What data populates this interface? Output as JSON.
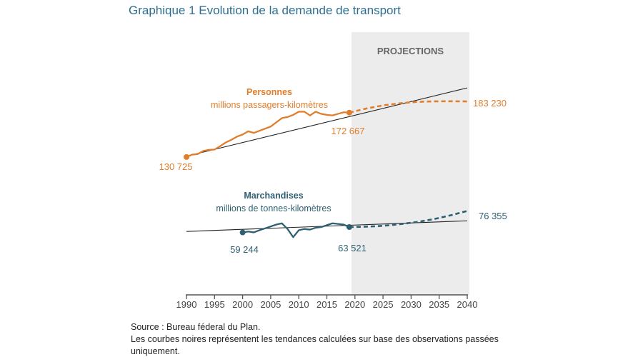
{
  "chart_data": {
    "type": "line",
    "title": "Graphique 1 Evolution de la demande de transport",
    "projections_label": "PROJECTIONS",
    "projection_start_year": 2019,
    "xlim": [
      1990,
      2040
    ],
    "xticks": [
      1990,
      1995,
      2000,
      2005,
      2010,
      2015,
      2020,
      2025,
      2030,
      2035,
      2040
    ],
    "colors": {
      "personnes": "#e07e2c",
      "marchandises": "#2f5f72",
      "trend": "#222222",
      "projection_band": "#ececec",
      "title": "#2e6e8e"
    },
    "series": [
      {
        "name": "Personnes",
        "unit": "millions passagers-kilomètres",
        "color": "#e07e2c",
        "observed": {
          "x": [
            1990,
            1991,
            1992,
            1993,
            1994,
            1995,
            1996,
            1997,
            1998,
            1999,
            2000,
            2001,
            2002,
            2003,
            2004,
            2005,
            2006,
            2007,
            2008,
            2009,
            2010,
            2011,
            2012,
            2013,
            2014,
            2015,
            2016,
            2017,
            2018,
            2019
          ],
          "y": [
            130725,
            133000,
            133500,
            136500,
            137500,
            137800,
            141000,
            144500,
            147000,
            150000,
            152000,
            155000,
            153500,
            155500,
            157500,
            159500,
            163500,
            167500,
            168500,
            170500,
            173500,
            173500,
            170000,
            173500,
            171500,
            170500,
            170000,
            171500,
            173000,
            172667
          ]
        },
        "projection": {
          "x": [
            2019,
            2022,
            2025,
            2028,
            2031,
            2034,
            2037,
            2040
          ],
          "y": [
            172667,
            176500,
            179500,
            181500,
            182800,
            183300,
            183400,
            183230
          ]
        },
        "trend": {
          "x": [
            1990,
            2040
          ],
          "y": [
            131500,
            196000
          ]
        },
        "labels": {
          "start": "130 725",
          "last_observed": "172 667",
          "end": "183 230"
        }
      },
      {
        "name": "Marchandises",
        "unit": "millions de tonnes-kilomètres",
        "color": "#2f5f72",
        "observed": {
          "x": [
            2000,
            2001,
            2002,
            2003,
            2004,
            2005,
            2006,
            2007,
            2008,
            2009,
            2010,
            2011,
            2012,
            2013,
            2014,
            2015,
            2016,
            2017,
            2018,
            2019
          ],
          "y": [
            59244,
            60000,
            59300,
            61000,
            62500,
            64000,
            65500,
            66500,
            62000,
            55500,
            61000,
            62000,
            61500,
            63000,
            63500,
            65000,
            66500,
            66000,
            65500,
            63521
          ]
        },
        "projection": {
          "x": [
            2019,
            2022,
            2025,
            2028,
            2031,
            2034,
            2037,
            2040
          ],
          "y": [
            63521,
            63800,
            64500,
            65800,
            67500,
            69800,
            72800,
            76355
          ]
        },
        "trend": {
          "x": [
            1990,
            2040
          ],
          "y": [
            60000,
            68500
          ]
        },
        "labels": {
          "start": "59 244",
          "last_observed": "63 521",
          "end": "76 355"
        }
      }
    ]
  },
  "notes": {
    "source": "Source : Bureau féderal du Plan.",
    "line2": "Les courbes noires représentent les tendances calculées sur base des observations passées uniquement."
  }
}
